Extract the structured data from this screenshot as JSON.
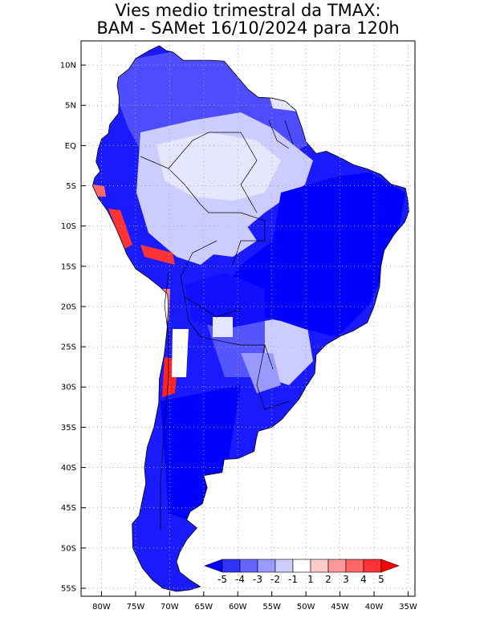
{
  "title": {
    "line1": "Vies medio trimestral da TMAX:",
    "line2": "BAM - SAMet 16/10/2024  para 120h"
  },
  "map": {
    "region": "South America",
    "lon_range": [
      -83,
      -34
    ],
    "lat_range": [
      -56,
      13
    ],
    "grid": true,
    "lat_ticks": [
      "10N",
      "5N",
      "EQ",
      "5S",
      "10S",
      "15S",
      "20S",
      "25S",
      "30S",
      "35S",
      "40S",
      "45S",
      "50S",
      "55S"
    ],
    "lon_ticks": [
      "80W",
      "75W",
      "70W",
      "65W",
      "60W",
      "55W",
      "50W",
      "45W",
      "40W",
      "35W"
    ]
  },
  "colorbar": {
    "labels": [
      "-5",
      "-4",
      "-3",
      "-2",
      "-1",
      "1",
      "2",
      "3",
      "4",
      "5"
    ],
    "colors": [
      "#0000ff",
      "#3333ff",
      "#6666ff",
      "#9999ff",
      "#ccccff",
      "#ffffff",
      "#ffcccc",
      "#ff9999",
      "#ff6666",
      "#ff3333",
      "#ff0000"
    ]
  }
}
